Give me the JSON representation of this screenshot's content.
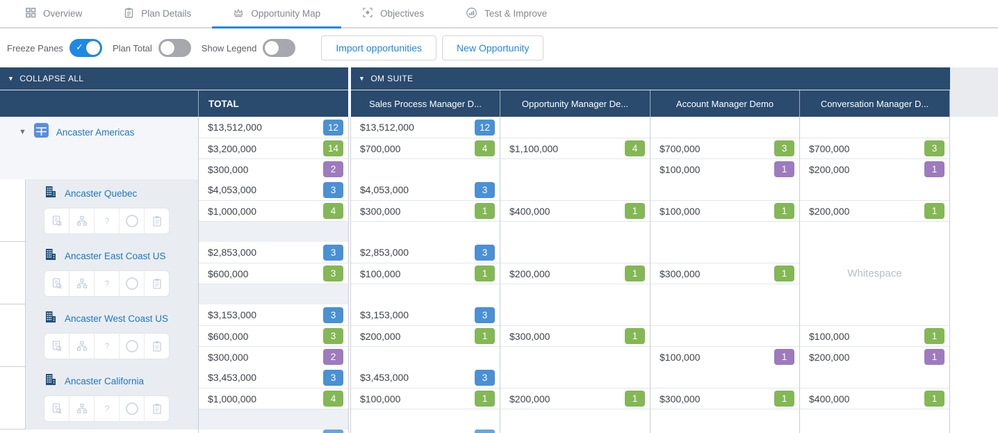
{
  "tabs": [
    {
      "label": "Overview",
      "icon": "grid-icon",
      "active": false
    },
    {
      "label": "Plan Details",
      "icon": "clipboard-icon",
      "active": false
    },
    {
      "label": "Opportunity Map",
      "icon": "crown-icon",
      "active": true
    },
    {
      "label": "Objectives",
      "icon": "target-icon",
      "active": false
    },
    {
      "label": "Test & Improve",
      "icon": "chart-circle-icon",
      "active": false
    }
  ],
  "toolbar": {
    "freeze_label": "Freeze Panes",
    "freeze_on": true,
    "plan_total_label": "Plan Total",
    "plan_total_on": false,
    "show_legend_label": "Show Legend",
    "show_legend_on": false,
    "import_button": "Import opportunities",
    "new_button": "New Opportunity"
  },
  "colors": {
    "accent_blue": "#1e88e5",
    "header_navy": "#2a4a6e",
    "link_blue": "#1c76c6"
  },
  "table": {
    "collapse_all_label": "COLLAPSE ALL",
    "suite_label": "OM SUITE",
    "total_label": "TOTAL",
    "columns": [
      "Sales Process Manager D...",
      "Opportunity Manager De...",
      "Account Manager Demo",
      "Conversation Manager D..."
    ],
    "badge_colors": {
      "blue": "#4a90d5",
      "green": "#84b755",
      "purple": "#9d7bbd"
    },
    "action_icons": [
      "document-search-icon",
      "hierarchy-icon",
      "help-icon",
      "status-circle-icon",
      "notes-clipboard-icon"
    ],
    "groups": [
      {
        "name": "Ancaster Americas",
        "root": true,
        "total": {
          "rows": [
            {
              "a": "$13,512,000",
              "c": "12",
              "k": "blue"
            },
            {
              "a": "$3,200,000",
              "c": "14",
              "k": "green"
            },
            {
              "a": "$300,000",
              "c": "2",
              "k": "purple"
            }
          ]
        },
        "cols": [
          {
            "rows": [
              {
                "a": "$13,512,000",
                "c": "12",
                "k": "blue"
              },
              {
                "a": "$700,000",
                "c": "4",
                "k": "green"
              },
              null
            ]
          },
          {
            "rows": [
              null,
              {
                "a": "$1,100,000",
                "c": "4",
                "k": "green"
              },
              null
            ]
          },
          {
            "rows": [
              null,
              {
                "a": "$700,000",
                "c": "3",
                "k": "green"
              },
              {
                "a": "$100,000",
                "c": "1",
                "k": "purple"
              }
            ]
          },
          {
            "rows": [
              null,
              {
                "a": "$700,000",
                "c": "3",
                "k": "green"
              },
              {
                "a": "$200,000",
                "c": "1",
                "k": "purple"
              }
            ]
          }
        ]
      },
      {
        "name": "Ancaster Quebec",
        "root": false,
        "total": {
          "rows": [
            {
              "a": "$4,053,000",
              "c": "3",
              "k": "blue"
            },
            {
              "a": "$1,000,000",
              "c": "4",
              "k": "green"
            },
            null
          ]
        },
        "cols": [
          {
            "rows": [
              {
                "a": "$4,053,000",
                "c": "3",
                "k": "blue"
              },
              {
                "a": "$300,000",
                "c": "1",
                "k": "green"
              },
              null
            ]
          },
          {
            "rows": [
              null,
              {
                "a": "$400,000",
                "c": "1",
                "k": "green"
              },
              null
            ]
          },
          {
            "rows": [
              null,
              {
                "a": "$100,000",
                "c": "1",
                "k": "green"
              },
              null
            ]
          },
          {
            "rows": [
              null,
              {
                "a": "$200,000",
                "c": "1",
                "k": "green"
              },
              null
            ]
          }
        ]
      },
      {
        "name": "Ancaster East Coast US",
        "root": false,
        "total": {
          "rows": [
            {
              "a": "$2,853,000",
              "c": "3",
              "k": "blue"
            },
            {
              "a": "$600,000",
              "c": "3",
              "k": "green"
            },
            null
          ]
        },
        "cols": [
          {
            "rows": [
              {
                "a": "$2,853,000",
                "c": "3",
                "k": "blue"
              },
              {
                "a": "$100,000",
                "c": "1",
                "k": "green"
              },
              null
            ]
          },
          {
            "rows": [
              null,
              {
                "a": "$200,000",
                "c": "1",
                "k": "green"
              },
              null
            ]
          },
          {
            "rows": [
              null,
              {
                "a": "$300,000",
                "c": "1",
                "k": "green"
              },
              null
            ]
          },
          {
            "merged": "Whitespace"
          }
        ]
      },
      {
        "name": "Ancaster West Coast US",
        "root": false,
        "total": {
          "rows": [
            {
              "a": "$3,153,000",
              "c": "3",
              "k": "blue"
            },
            {
              "a": "$600,000",
              "c": "3",
              "k": "green"
            },
            {
              "a": "$300,000",
              "c": "2",
              "k": "purple"
            }
          ]
        },
        "cols": [
          {
            "rows": [
              {
                "a": "$3,153,000",
                "c": "3",
                "k": "blue"
              },
              {
                "a": "$200,000",
                "c": "1",
                "k": "green"
              },
              null
            ]
          },
          {
            "rows": [
              null,
              {
                "a": "$300,000",
                "c": "1",
                "k": "green"
              },
              null
            ]
          },
          {
            "rows": [
              null,
              null,
              {
                "a": "$100,000",
                "c": "1",
                "k": "purple"
              }
            ]
          },
          {
            "rows": [
              null,
              {
                "a": "$100,000",
                "c": "1",
                "k": "green"
              },
              {
                "a": "$200,000",
                "c": "1",
                "k": "purple"
              }
            ]
          }
        ]
      },
      {
        "name": "Ancaster California",
        "root": false,
        "total": {
          "rows": [
            {
              "a": "$3,453,000",
              "c": "3",
              "k": "blue"
            },
            {
              "a": "$1,000,000",
              "c": "4",
              "k": "green"
            },
            null
          ]
        },
        "cols": [
          {
            "rows": [
              {
                "a": "$3,453,000",
                "c": "3",
                "k": "blue"
              },
              {
                "a": "$100,000",
                "c": "1",
                "k": "green"
              },
              null
            ]
          },
          {
            "rows": [
              null,
              {
                "a": "$200,000",
                "c": "1",
                "k": "green"
              },
              null
            ]
          },
          {
            "rows": [
              null,
              {
                "a": "$300,000",
                "c": "1",
                "k": "green"
              },
              null
            ]
          },
          {
            "rows": [
              null,
              {
                "a": "$400,000",
                "c": "1",
                "k": "green"
              },
              null
            ]
          }
        ]
      }
    ]
  }
}
